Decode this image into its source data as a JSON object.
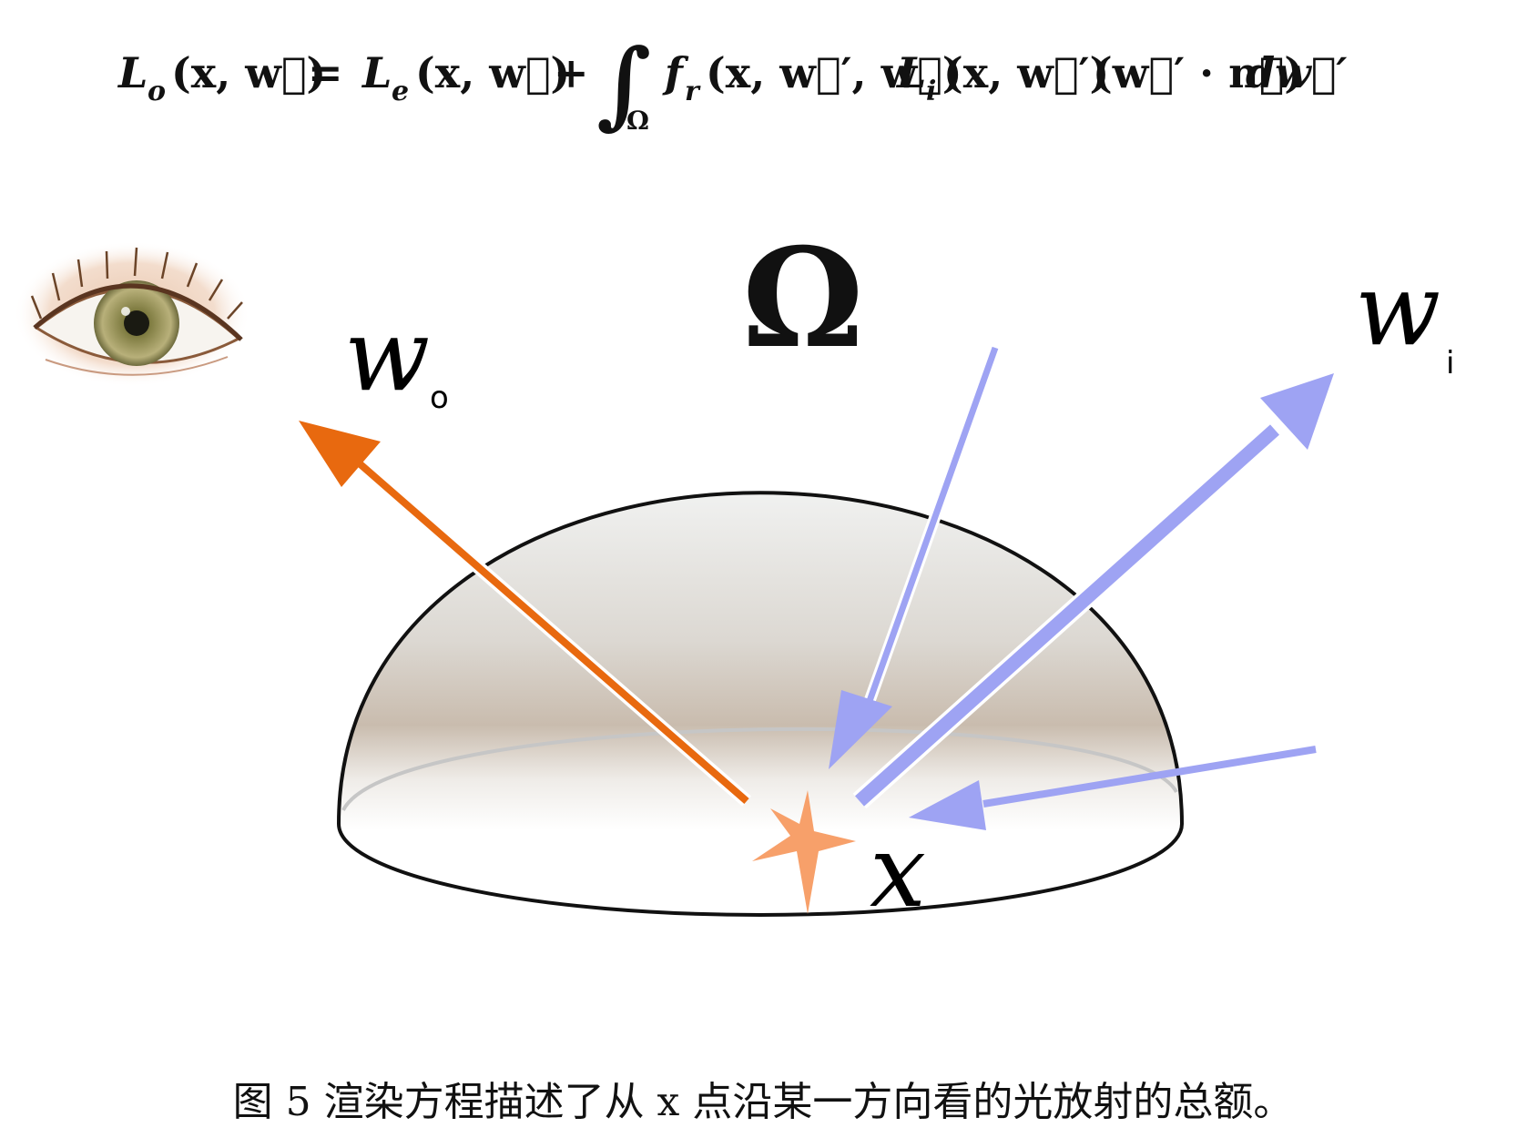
{
  "equation": {
    "lhs_L": "L",
    "lhs_sub": "o",
    "lhs_args": "(x, w⃗)",
    "equals": "=",
    "le_L": "L",
    "le_sub": "e",
    "le_args": "(x, w⃗)",
    "plus": "+",
    "integral": "∫",
    "integral_domain": "Ω",
    "fr_f": "f",
    "fr_sub": "r",
    "fr_args": "(x, w⃗′, w⃗)",
    "li_L": "L",
    "li_sub": "i",
    "li_args": "(x, w⃗′)",
    "dot_term": "(w⃗′ · n⃗)",
    "differential": "dw⃗′"
  },
  "diagram": {
    "omega_label": "Ω",
    "wo_label": "w",
    "wo_sub": "o",
    "wi_label": "w",
    "wi_sub": "i",
    "point_label": "x",
    "colors": {
      "outgoing": "#e8690f",
      "incoming": "#9ea3f3",
      "star": "#f7a06a",
      "outline": "#111111",
      "rim": "#c6c6c6"
    },
    "icons": [
      "eye-icon",
      "star-icon"
    ]
  },
  "caption": "图 5 渲染方程描述了从 x 点沿某一方向看的光放射的总额。"
}
